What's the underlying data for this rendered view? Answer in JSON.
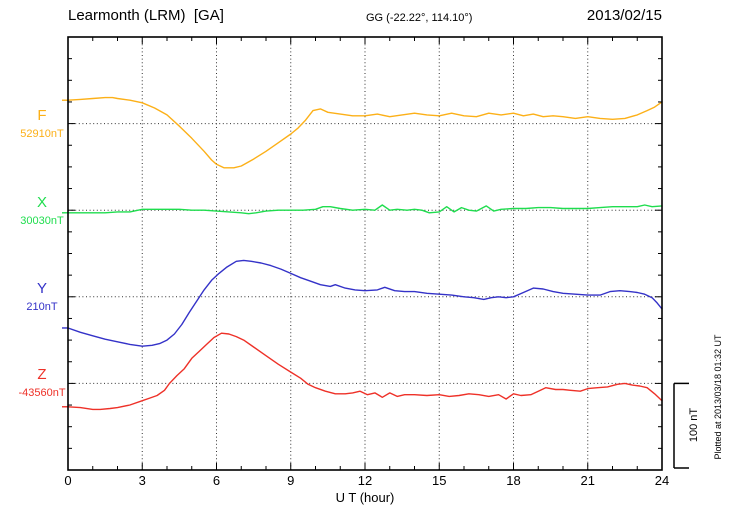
{
  "header": {
    "station": "Learmonth (LRM)  [GA]",
    "coords": "GG (-22.22°, 114.10°)",
    "date": "2013/02/15"
  },
  "footer": {
    "plotted_at": "Plotted at 2013/03/18 01:32 UT"
  },
  "chart_data": {
    "type": "line",
    "title": "Learmonth (LRM)  [GA]",
    "subtitle": "GG (-22.22°, 114.10°)",
    "date": "2013/02/15",
    "xlabel": "U T (hour)",
    "xlim": [
      0,
      24
    ],
    "xticks": [
      0,
      3,
      6,
      9,
      12,
      15,
      18,
      21,
      24
    ],
    "x_minor_tick_interval_hours": 1,
    "grid": "dotted vertical lines every 3 h, dotted horizontal line at each series baseline",
    "y_minor_tick_nT": 25,
    "y_major_tick_nT": 100,
    "scale_bar": {
      "label": "100 nT",
      "nT": 100
    },
    "legend_position": "left margin, one colored letter + baseline value per trace",
    "series": [
      {
        "name": "F",
        "baseline_label": "52910nT",
        "baseline_nT": 52910,
        "color": "#fcb018",
        "points_hour_offset_nT": [
          [
            0,
            27
          ],
          [
            0.5,
            28
          ],
          [
            1,
            29
          ],
          [
            1.5,
            30
          ],
          [
            1.8,
            30
          ],
          [
            2,
            29
          ],
          [
            2.5,
            27
          ],
          [
            3,
            24
          ],
          [
            3.5,
            18
          ],
          [
            4,
            10
          ],
          [
            4.5,
            -3
          ],
          [
            5,
            -17
          ],
          [
            5.5,
            -32
          ],
          [
            5.8,
            -42
          ],
          [
            6,
            -47
          ],
          [
            6.3,
            -51
          ],
          [
            6.7,
            -51
          ],
          [
            7,
            -49
          ],
          [
            7.5,
            -41
          ],
          [
            8,
            -32
          ],
          [
            8.5,
            -22
          ],
          [
            9,
            -12
          ],
          [
            9.3,
            -5
          ],
          [
            9.6,
            4
          ],
          [
            9.9,
            15
          ],
          [
            10.2,
            17
          ],
          [
            10.5,
            13
          ],
          [
            11,
            11
          ],
          [
            11.5,
            9
          ],
          [
            12,
            9
          ],
          [
            12.5,
            11
          ],
          [
            13,
            8
          ],
          [
            13.5,
            10
          ],
          [
            14,
            12
          ],
          [
            14.5,
            10
          ],
          [
            15,
            9
          ],
          [
            15.5,
            12
          ],
          [
            16,
            9
          ],
          [
            16.5,
            8
          ],
          [
            17,
            12
          ],
          [
            17.5,
            10
          ],
          [
            18,
            12
          ],
          [
            18.4,
            9
          ],
          [
            18.8,
            11
          ],
          [
            19.2,
            8
          ],
          [
            19.6,
            9
          ],
          [
            20,
            8
          ],
          [
            20.5,
            6
          ],
          [
            21,
            8
          ],
          [
            21.5,
            6
          ],
          [
            22,
            5
          ],
          [
            22.5,
            6
          ],
          [
            23,
            10
          ],
          [
            23.4,
            15
          ],
          [
            23.7,
            19
          ],
          [
            24,
            25
          ]
        ]
      },
      {
        "name": "X",
        "baseline_label": "30030nT",
        "baseline_nT": 30030,
        "color": "#1fdd4e",
        "points_hour_offset_nT": [
          [
            0,
            -3
          ],
          [
            0.5,
            -3
          ],
          [
            1,
            -3
          ],
          [
            1.5,
            -3
          ],
          [
            2,
            -2
          ],
          [
            2.5,
            -2
          ],
          [
            3,
            1
          ],
          [
            3.2,
            1
          ],
          [
            3.5,
            1
          ],
          [
            4,
            1
          ],
          [
            4.5,
            1
          ],
          [
            5,
            0
          ],
          [
            5.5,
            0
          ],
          [
            6,
            -1
          ],
          [
            6.5,
            -2
          ],
          [
            7,
            -3
          ],
          [
            7.3,
            -4
          ],
          [
            7.6,
            -3
          ],
          [
            8,
            -1
          ],
          [
            8.5,
            0
          ],
          [
            9,
            0
          ],
          [
            9.5,
            0
          ],
          [
            10,
            1
          ],
          [
            10.3,
            4
          ],
          [
            10.6,
            4
          ],
          [
            11,
            2
          ],
          [
            11.5,
            0
          ],
          [
            12,
            1
          ],
          [
            12.4,
            0
          ],
          [
            12.7,
            6
          ],
          [
            13,
            0
          ],
          [
            13.3,
            1
          ],
          [
            13.7,
            0
          ],
          [
            14,
            1
          ],
          [
            14.3,
            0
          ],
          [
            14.6,
            -3
          ],
          [
            15,
            -2
          ],
          [
            15.3,
            4
          ],
          [
            15.6,
            -2
          ],
          [
            15.9,
            3
          ],
          [
            16.2,
            0
          ],
          [
            16.5,
            -1
          ],
          [
            16.9,
            5
          ],
          [
            17.2,
            -1
          ],
          [
            17.5,
            1
          ],
          [
            18,
            2
          ],
          [
            18.5,
            2
          ],
          [
            19,
            3
          ],
          [
            19.5,
            3
          ],
          [
            20,
            2
          ],
          [
            20.5,
            2
          ],
          [
            21,
            2
          ],
          [
            21.5,
            3
          ],
          [
            22,
            4
          ],
          [
            22.5,
            4
          ],
          [
            23,
            4
          ],
          [
            23.3,
            6
          ],
          [
            23.6,
            4
          ],
          [
            24,
            5
          ]
        ]
      },
      {
        "name": "Y",
        "baseline_label": "210nT",
        "baseline_nT": 210,
        "color": "#3432c8",
        "points_hour_offset_nT": [
          [
            0,
            -36
          ],
          [
            0.5,
            -41
          ],
          [
            1,
            -45
          ],
          [
            1.5,
            -49
          ],
          [
            2,
            -52
          ],
          [
            2.5,
            -55
          ],
          [
            3,
            -57
          ],
          [
            3.4,
            -56
          ],
          [
            3.7,
            -54
          ],
          [
            4,
            -50
          ],
          [
            4.3,
            -43
          ],
          [
            4.6,
            -32
          ],
          [
            4.9,
            -18
          ],
          [
            5.2,
            -5
          ],
          [
            5.5,
            8
          ],
          [
            5.8,
            19
          ],
          [
            6.1,
            27
          ],
          [
            6.4,
            34
          ],
          [
            6.8,
            41
          ],
          [
            7.1,
            42
          ],
          [
            7.4,
            41
          ],
          [
            7.8,
            39
          ],
          [
            8.2,
            36
          ],
          [
            8.6,
            32
          ],
          [
            9,
            27
          ],
          [
            9.4,
            22
          ],
          [
            9.8,
            18
          ],
          [
            10.2,
            14
          ],
          [
            10.6,
            12
          ],
          [
            10.8,
            14
          ],
          [
            11.2,
            10
          ],
          [
            11.6,
            8
          ],
          [
            12,
            7
          ],
          [
            12.5,
            8
          ],
          [
            12.8,
            11
          ],
          [
            13.2,
            7
          ],
          [
            13.6,
            6
          ],
          [
            14,
            6
          ],
          [
            14.5,
            4
          ],
          [
            15,
            3
          ],
          [
            15.5,
            2
          ],
          [
            16,
            0
          ],
          [
            16.4,
            -1
          ],
          [
            16.8,
            -3
          ],
          [
            17.1,
            -1
          ],
          [
            17.4,
            0
          ],
          [
            17.7,
            -1
          ],
          [
            18,
            0
          ],
          [
            18.4,
            5
          ],
          [
            18.8,
            10
          ],
          [
            19.2,
            9
          ],
          [
            19.6,
            6
          ],
          [
            20,
            4
          ],
          [
            20.5,
            3
          ],
          [
            21,
            2
          ],
          [
            21.5,
            2
          ],
          [
            21.9,
            6
          ],
          [
            22.3,
            7
          ],
          [
            22.7,
            6
          ],
          [
            23,
            5
          ],
          [
            23.3,
            3
          ],
          [
            23.6,
            -1
          ],
          [
            23.8,
            -7
          ],
          [
            24,
            -14
          ]
        ]
      },
      {
        "name": "Z",
        "baseline_label": "-43560nT",
        "baseline_nT": -43560,
        "color": "#ee3128",
        "points_hour_offset_nT": [
          [
            0,
            -27
          ],
          [
            0.5,
            -28
          ],
          [
            1,
            -30
          ],
          [
            1.3,
            -30
          ],
          [
            1.7,
            -29
          ],
          [
            2,
            -28
          ],
          [
            2.5,
            -25
          ],
          [
            3,
            -20
          ],
          [
            3.3,
            -17
          ],
          [
            3.6,
            -14
          ],
          [
            3.9,
            -8
          ],
          [
            4.1,
            0
          ],
          [
            4.4,
            9
          ],
          [
            4.7,
            17
          ],
          [
            5,
            29
          ],
          [
            5.3,
            37
          ],
          [
            5.6,
            45
          ],
          [
            5.9,
            53
          ],
          [
            6.2,
            58
          ],
          [
            6.5,
            57
          ],
          [
            6.8,
            54
          ],
          [
            7.1,
            50
          ],
          [
            7.5,
            42
          ],
          [
            8,
            32
          ],
          [
            8.5,
            22
          ],
          [
            9,
            13
          ],
          [
            9.4,
            6
          ],
          [
            9.7,
            -1
          ],
          [
            10,
            -5
          ],
          [
            10.4,
            -9
          ],
          [
            10.8,
            -12
          ],
          [
            11.2,
            -12
          ],
          [
            11.5,
            -11
          ],
          [
            11.8,
            -9
          ],
          [
            12.1,
            -13
          ],
          [
            12.4,
            -11
          ],
          [
            12.7,
            -16
          ],
          [
            13,
            -11
          ],
          [
            13.3,
            -15
          ],
          [
            13.6,
            -13
          ],
          [
            14,
            -13
          ],
          [
            14.5,
            -14
          ],
          [
            15,
            -13
          ],
          [
            15.4,
            -15
          ],
          [
            15.8,
            -14
          ],
          [
            16.2,
            -12
          ],
          [
            16.6,
            -13
          ],
          [
            17,
            -15
          ],
          [
            17.4,
            -13
          ],
          [
            17.7,
            -18
          ],
          [
            18,
            -12
          ],
          [
            18.3,
            -14
          ],
          [
            18.7,
            -13
          ],
          [
            19,
            -9
          ],
          [
            19.3,
            -5
          ],
          [
            19.7,
            -7
          ],
          [
            20,
            -7
          ],
          [
            20.3,
            -8
          ],
          [
            20.7,
            -9
          ],
          [
            21,
            -6
          ],
          [
            21.4,
            -5
          ],
          [
            21.8,
            -4
          ],
          [
            22.2,
            -1
          ],
          [
            22.5,
            0
          ],
          [
            22.8,
            -2
          ],
          [
            23.1,
            -3
          ],
          [
            23.4,
            -5
          ],
          [
            23.7,
            -12
          ],
          [
            24,
            -20
          ]
        ]
      }
    ]
  }
}
